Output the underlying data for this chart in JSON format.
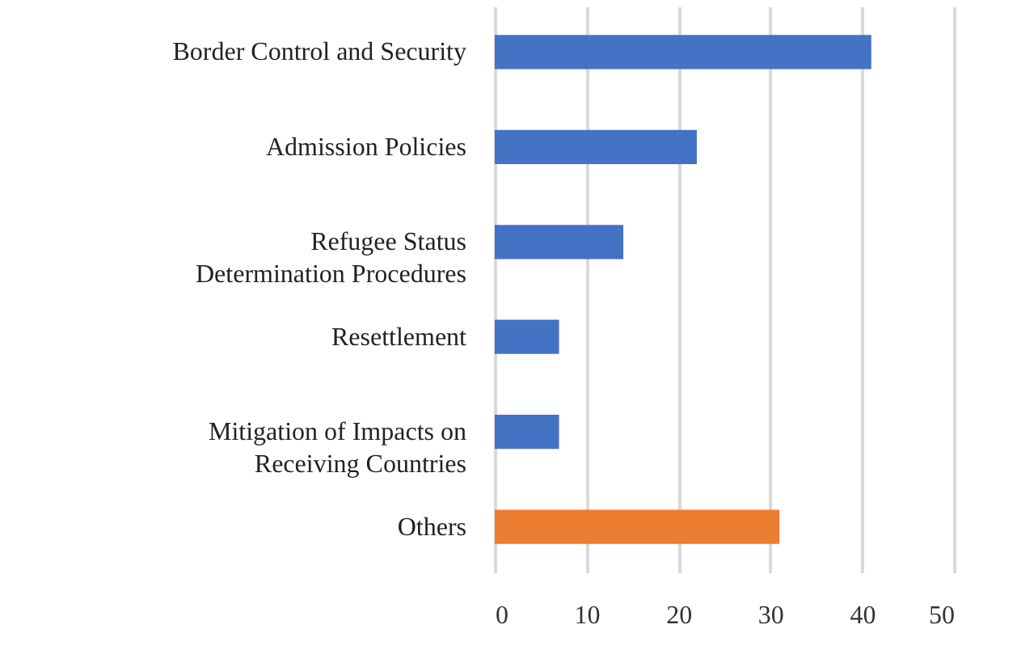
{
  "chart_data": {
    "type": "bar",
    "orientation": "horizontal",
    "categories": [
      "Border Control and Security",
      "Admission Policies",
      "Refugee Status\nDetermination Procedures",
      "Resettlement",
      "Mitigation of Impacts on\nReceiving Countries",
      "Others"
    ],
    "values": [
      41,
      22,
      14,
      7,
      7,
      31
    ],
    "colors": [
      "#4472c4",
      "#4472c4",
      "#4472c4",
      "#4472c4",
      "#4472c4",
      "#ed7d31"
    ],
    "xlim": [
      0,
      50
    ],
    "xticks": [
      0,
      10,
      20,
      30,
      40,
      50
    ],
    "grid": "x"
  }
}
